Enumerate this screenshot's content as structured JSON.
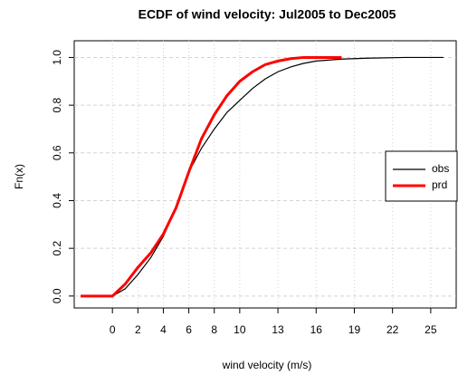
{
  "chart_data": {
    "type": "line",
    "title": "ECDF of wind velocity: Jul2005 to Dec2005",
    "x_label": "wind velocity (m/s)",
    "y_label": "Fn(x)",
    "x": [
      -2.5,
      0,
      1,
      2,
      3,
      4,
      5,
      6,
      7,
      8,
      9,
      10,
      11,
      12,
      13,
      14,
      15,
      16,
      18,
      20,
      23,
      26
    ],
    "series": [
      {
        "name": "obs",
        "color": "#000000",
        "values": [
          0,
          0,
          0.03,
          0.09,
          0.16,
          0.25,
          0.37,
          0.52,
          0.62,
          0.7,
          0.77,
          0.82,
          0.87,
          0.91,
          0.94,
          0.96,
          0.975,
          0.985,
          0.993,
          0.997,
          1,
          1
        ]
      },
      {
        "name": "prd",
        "color": "#ff0000",
        "values": [
          0,
          0,
          0.05,
          0.12,
          0.18,
          0.26,
          0.37,
          0.52,
          0.66,
          0.76,
          0.84,
          0.9,
          0.94,
          0.97,
          0.985,
          0.995,
          1,
          1,
          1,
          null,
          null,
          null
        ]
      }
    ],
    "xlim": [
      -3,
      27
    ],
    "ylim": [
      -0.05,
      1.07
    ],
    "xticks": [
      0,
      2,
      4,
      6,
      8,
      10,
      13,
      16,
      19,
      22,
      25
    ],
    "yticks": [
      {
        "value": 0,
        "label": "0.0"
      },
      0.2,
      0.4,
      0.6,
      0.8,
      {
        "value": 1,
        "label": "1.0"
      }
    ],
    "grid": true,
    "legend": "right"
  }
}
